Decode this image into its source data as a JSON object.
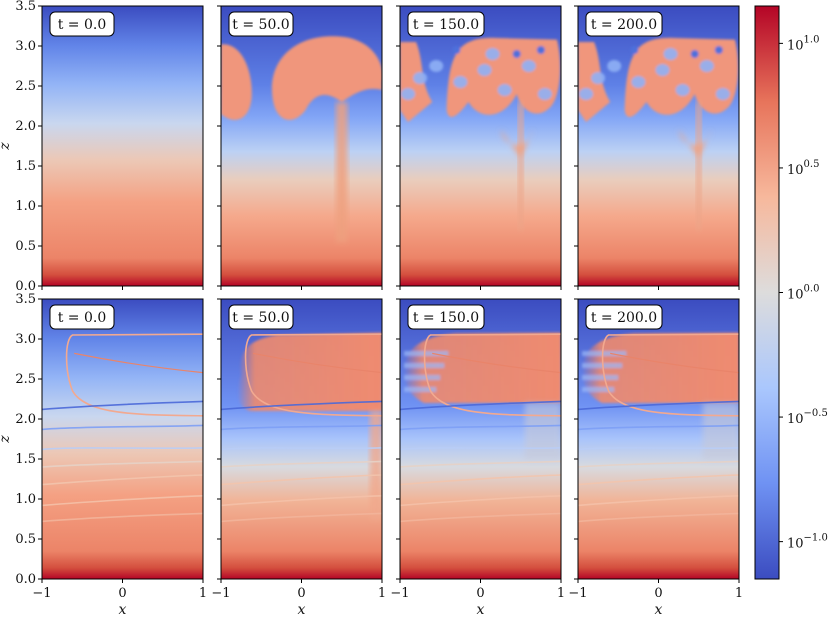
{
  "figure": {
    "colorbar": {
      "ticks": [
        {
          "base": "10",
          "exp": "1.0",
          "value": 1.0
        },
        {
          "base": "10",
          "exp": "0.5",
          "value": 0.5
        },
        {
          "base": "10",
          "exp": "0.0",
          "value": 0.0
        },
        {
          "base": "10",
          "exp": "−0.5",
          "value": -0.5
        },
        {
          "base": "10",
          "exp": "−1.0",
          "value": -1.0
        }
      ],
      "range_log10": [
        -1.15,
        1.15
      ],
      "colormap": [
        "#3b4cc0",
        "#6f92f3",
        "#aac7fd",
        "#dddcdc",
        "#f7b89c",
        "#e7745b",
        "#b40426"
      ]
    },
    "zticks": [
      "3.5",
      "3.0",
      "2.5",
      "2.0",
      "1.5",
      "1.0",
      "0.5",
      "0.0"
    ],
    "xticks": [
      "−1",
      "0",
      "1"
    ]
  },
  "chart_data": [
    {
      "type": "heatmap",
      "row": "top",
      "time_label": "t = 0.0",
      "t": 0.0,
      "xlabel": "",
      "ylabel": "z",
      "xlim": [
        -1,
        1
      ],
      "ylim": [
        0,
        3.5
      ],
      "scale": "log10"
    },
    {
      "type": "heatmap",
      "row": "top",
      "time_label": "t = 50.0",
      "t": 50.0,
      "xlabel": "",
      "ylabel": "",
      "xlim": [
        -1,
        1
      ],
      "ylim": [
        0,
        3.5
      ],
      "scale": "log10"
    },
    {
      "type": "heatmap",
      "row": "top",
      "time_label": "t = 150.0",
      "t": 150.0,
      "xlabel": "",
      "ylabel": "",
      "xlim": [
        -1,
        1
      ],
      "ylim": [
        0,
        3.5
      ],
      "scale": "log10"
    },
    {
      "type": "heatmap",
      "row": "top",
      "time_label": "t = 200.0",
      "t": 200.0,
      "xlabel": "",
      "ylabel": "",
      "xlim": [
        -1,
        1
      ],
      "ylim": [
        0,
        3.5
      ],
      "scale": "log10"
    },
    {
      "type": "heatmap",
      "row": "bottom",
      "time_label": "t = 0.0",
      "t": 0.0,
      "xlabel": "x",
      "ylabel": "z",
      "xlim": [
        -1,
        1
      ],
      "ylim": [
        0,
        3.5
      ],
      "scale": "log10",
      "contours": true
    },
    {
      "type": "heatmap",
      "row": "bottom",
      "time_label": "t = 50.0",
      "t": 50.0,
      "xlabel": "x",
      "ylabel": "",
      "xlim": [
        -1,
        1
      ],
      "ylim": [
        0,
        3.5
      ],
      "scale": "log10",
      "contours": true
    },
    {
      "type": "heatmap",
      "row": "bottom",
      "time_label": "t = 150.0",
      "t": 150.0,
      "xlabel": "x",
      "ylabel": "",
      "xlim": [
        -1,
        1
      ],
      "ylim": [
        0,
        3.5
      ],
      "scale": "log10",
      "contours": true
    },
    {
      "type": "heatmap",
      "row": "bottom",
      "time_label": "t = 200.0",
      "t": 200.0,
      "xlabel": "x",
      "ylabel": "",
      "xlim": [
        -1,
        1
      ],
      "ylim": [
        0,
        3.5
      ],
      "scale": "log10",
      "contours": true
    }
  ]
}
